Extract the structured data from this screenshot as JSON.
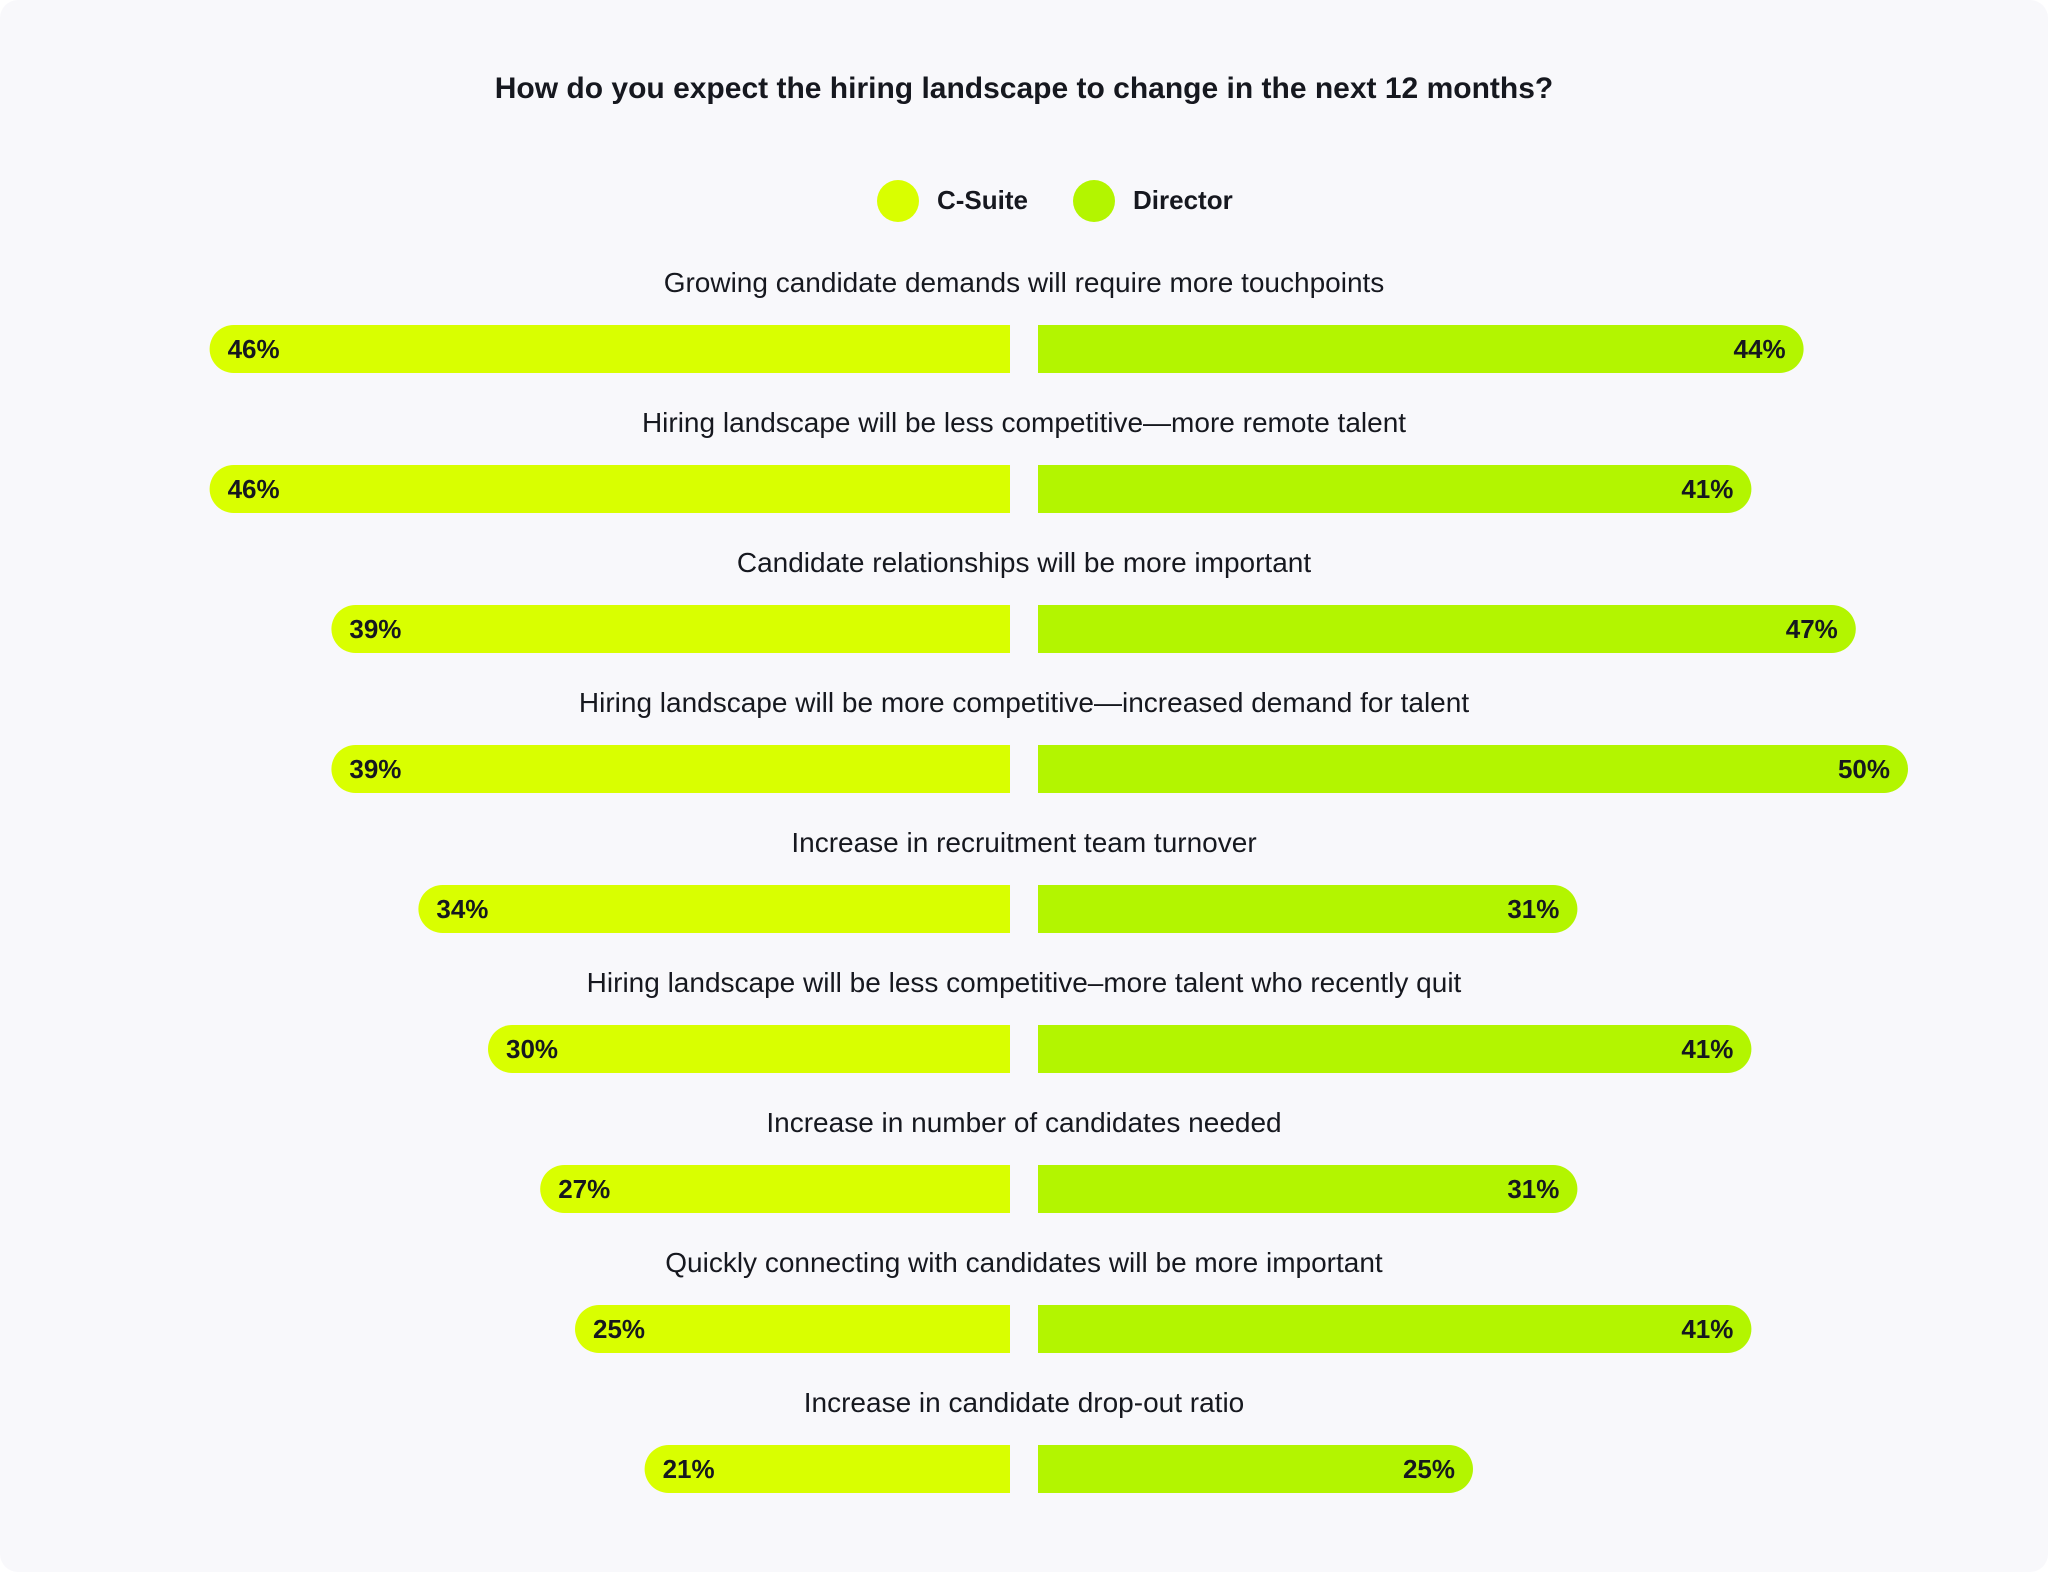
{
  "chart_data": {
    "type": "bar",
    "title": "How do you expect the hiring landscape to change in the next 12 months?",
    "legend_placement": "top-center",
    "grid": false,
    "xlim": [
      0,
      50
    ],
    "categories": [
      "Growing candidate demands will require more touchpoints",
      "Hiring landscape will be less competitive—more remote talent",
      "Candidate relationships will be more important",
      "Hiring landscape will be more competitive—increased demand for talent",
      "Increase in recruitment team turnover",
      "Hiring landscape will be less competitive–more talent who recently quit",
      "Increase in number of candidates needed",
      "Quickly connecting with candidates will be more important",
      "Increase in candidate drop-out ratio"
    ],
    "series": [
      {
        "name": "C-Suite",
        "color": "#d9ff00",
        "values": [
          46,
          46,
          39,
          39,
          34,
          30,
          27,
          25,
          21
        ],
        "labels": [
          "46%",
          "46%",
          "39%",
          "39%",
          "34%",
          "30%",
          "27%",
          "25%",
          "21%"
        ]
      },
      {
        "name": "Director",
        "color": "#b3f500",
        "values": [
          44,
          41,
          47,
          50,
          31,
          41,
          31,
          41,
          25
        ],
        "labels": [
          "44%",
          "41%",
          "47%",
          "50%",
          "31%",
          "41%",
          "31%",
          "41%",
          "25%"
        ]
      }
    ]
  }
}
